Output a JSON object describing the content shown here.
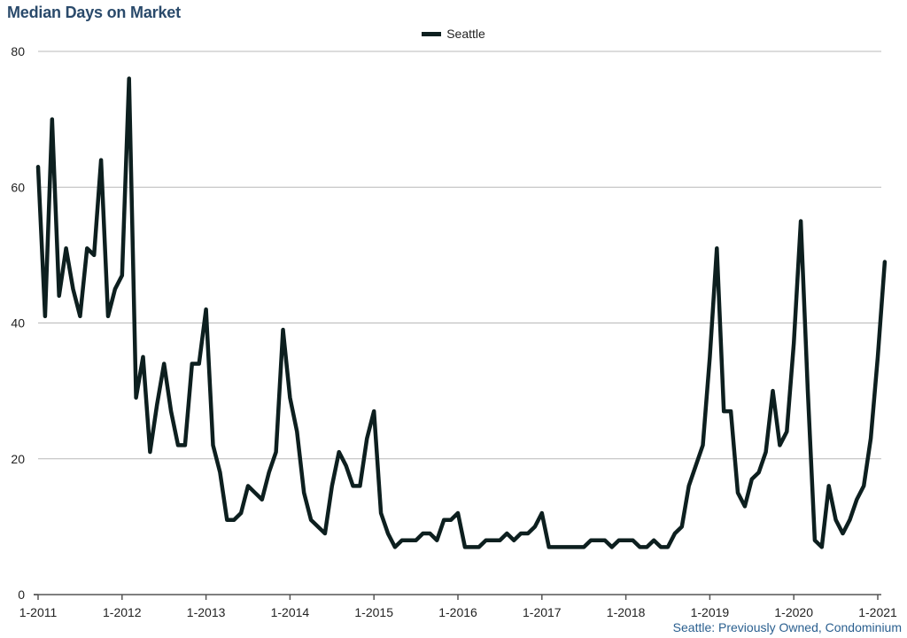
{
  "chart_data": {
    "type": "line",
    "title": "Median Days on Market",
    "source_note": "Seattle: Previously Owned, Condominium",
    "legend": {
      "position": "top-center"
    },
    "series": [
      {
        "name": "Seattle",
        "color": "#0d1f1f",
        "values": [
          63,
          41,
          70,
          44,
          51,
          45,
          41,
          51,
          50,
          64,
          41,
          45,
          47,
          76,
          29,
          35,
          21,
          28,
          34,
          27,
          22,
          22,
          34,
          34,
          42,
          22,
          18,
          11,
          11,
          12,
          16,
          15,
          14,
          18,
          21,
          39,
          29,
          24,
          15,
          11,
          10,
          9,
          16,
          21,
          19,
          16,
          16,
          23,
          27,
          12,
          9,
          7,
          8,
          8,
          8,
          9,
          9,
          8,
          11,
          11,
          12,
          7,
          7,
          7,
          8,
          8,
          8,
          9,
          8,
          9,
          9,
          10,
          12,
          7,
          7,
          7,
          7,
          7,
          7,
          8,
          8,
          8,
          7,
          8,
          8,
          8,
          7,
          7,
          8,
          7,
          7,
          9,
          10,
          16,
          19,
          22,
          35,
          51,
          27,
          27,
          15,
          13,
          17,
          18,
          21,
          30,
          22,
          24,
          37,
          55,
          30,
          8,
          7,
          16,
          11,
          9,
          11,
          14,
          16,
          23,
          35,
          49
        ]
      }
    ],
    "x_start": "1-2011",
    "x_ticks": [
      "1-2011",
      "1-2012",
      "1-2013",
      "1-2014",
      "1-2015",
      "1-2016",
      "1-2017",
      "1-2018",
      "1-2019",
      "1-2020",
      "1-2021"
    ],
    "y_ticks": [
      0,
      20,
      40,
      60,
      80
    ],
    "ylim": [
      0,
      80
    ],
    "grid": "horizontal"
  }
}
